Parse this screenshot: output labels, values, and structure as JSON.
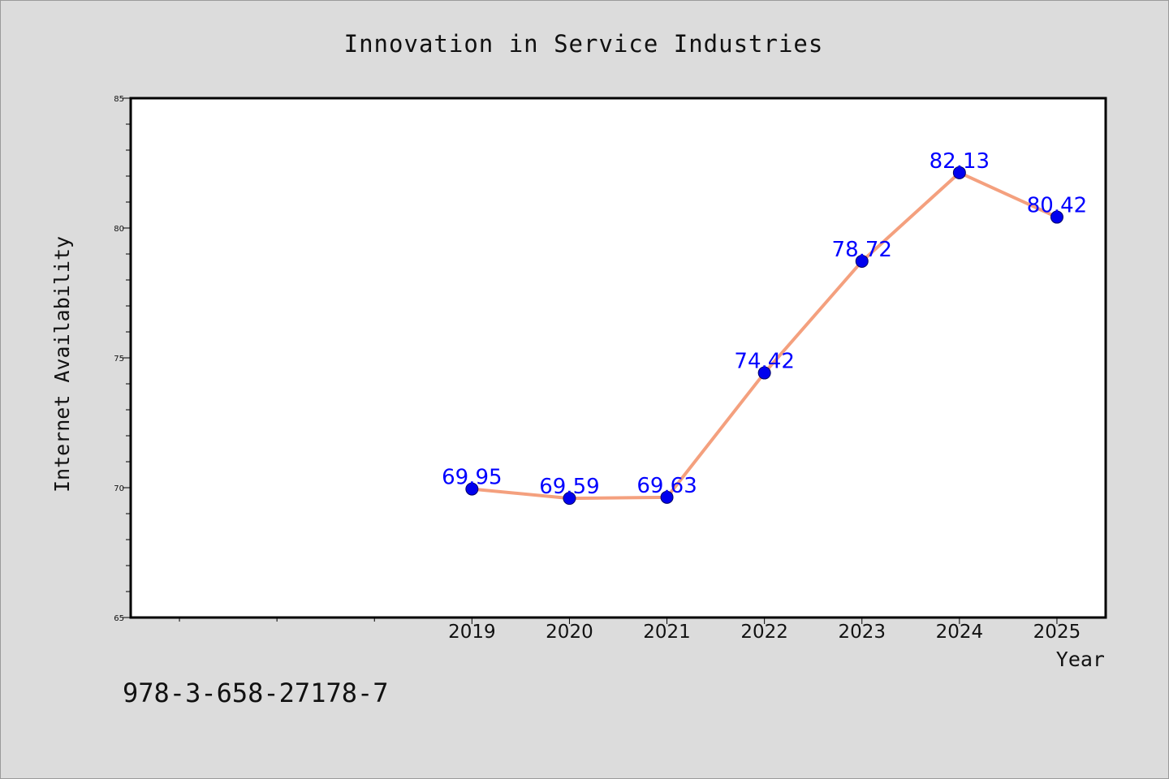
{
  "figure": {
    "background": "#dcdcdc",
    "footer_code": "978-3-658-27178-7"
  },
  "chart_data": {
    "type": "line",
    "title": "Innovation in Service Industries",
    "xlabel": "Year",
    "ylabel": "Internet Availability",
    "x": [
      "2019",
      "2020",
      "2021",
      "2022",
      "2023",
      "2024",
      "2025"
    ],
    "series": [
      {
        "values": [
          69.95,
          69.59,
          69.63,
          74.42,
          78.72,
          82.13,
          80.42
        ],
        "line_color": "#f4a07e",
        "marker_color": "#0000ee",
        "label_color": "#0000ff"
      }
    ],
    "data_labels": [
      "69.95",
      "69.59",
      "69.63",
      "74.42",
      "78.72",
      "82.13",
      "80.42"
    ],
    "ylim": [
      65,
      85
    ],
    "yticks": [
      65,
      70,
      75,
      80,
      85
    ],
    "ytick_labels": [
      "65",
      "70",
      "75",
      "80",
      "85"
    ],
    "xlim": [
      2015.5,
      2025.5
    ],
    "grid": false,
    "legend": "none",
    "plot_background": "#ffffff"
  }
}
